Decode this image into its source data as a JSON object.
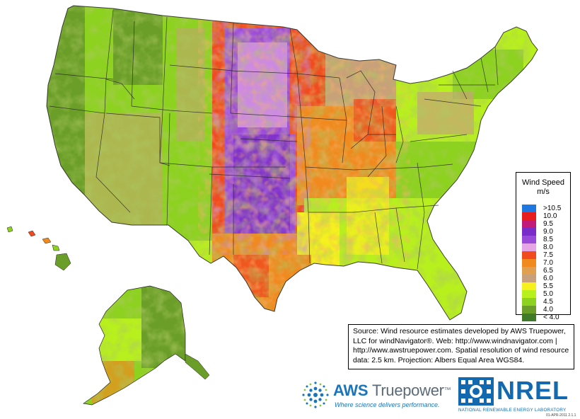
{
  "legend": {
    "title_line1": "Wind Speed",
    "title_line2": "m/s",
    "items": [
      {
        "label": ">10.5",
        "color": "#1e78e0"
      },
      {
        "label": "10.0",
        "color": "#e81e1e"
      },
      {
        "label": "9.5",
        "color": "#c21a78"
      },
      {
        "label": "9.0",
        "color": "#7a2cc8"
      },
      {
        "label": "8.5",
        "color": "#9a4ad8"
      },
      {
        "label": "8.0",
        "color": "#e6a6e6"
      },
      {
        "label": "7.5",
        "color": "#f04a1e"
      },
      {
        "label": "7.0",
        "color": "#f08a1e"
      },
      {
        "label": "6.5",
        "color": "#e0a050"
      },
      {
        "label": "6.0",
        "color": "#c8a07a"
      },
      {
        "label": "5.5",
        "color": "#f5f01e"
      },
      {
        "label": "5.0",
        "color": "#b8f01e"
      },
      {
        "label": "4.5",
        "color": "#8cd21e"
      },
      {
        "label": "4.0",
        "color": "#6a9e28"
      },
      {
        "label": "< 4.0",
        "color": "#3e7a28"
      }
    ]
  },
  "source": {
    "line1": "Source: Wind resource estimates developed by AWS Truepower,",
    "line2": "LLC for windNavigator®. Web: http://www.windnavigator.com |",
    "line3": "http://www.awstruepower.com. Spatial resolution of wind resource",
    "line4": "data: 2.5 km. Projection: Albers Equal Area WGS84."
  },
  "aws": {
    "word_aws": "AWS ",
    "word_truepower": "Truepower",
    "tm": "™",
    "tagline": "Where science delivers performance.",
    "brand_color": "#1b75bb"
  },
  "nrel": {
    "word": "NREL",
    "subtitle": "NATIONAL RENEWABLE ENERGY LABORATORY",
    "brand_color": "#1269b0"
  },
  "version": "01-APR-2011 2.1.1"
}
